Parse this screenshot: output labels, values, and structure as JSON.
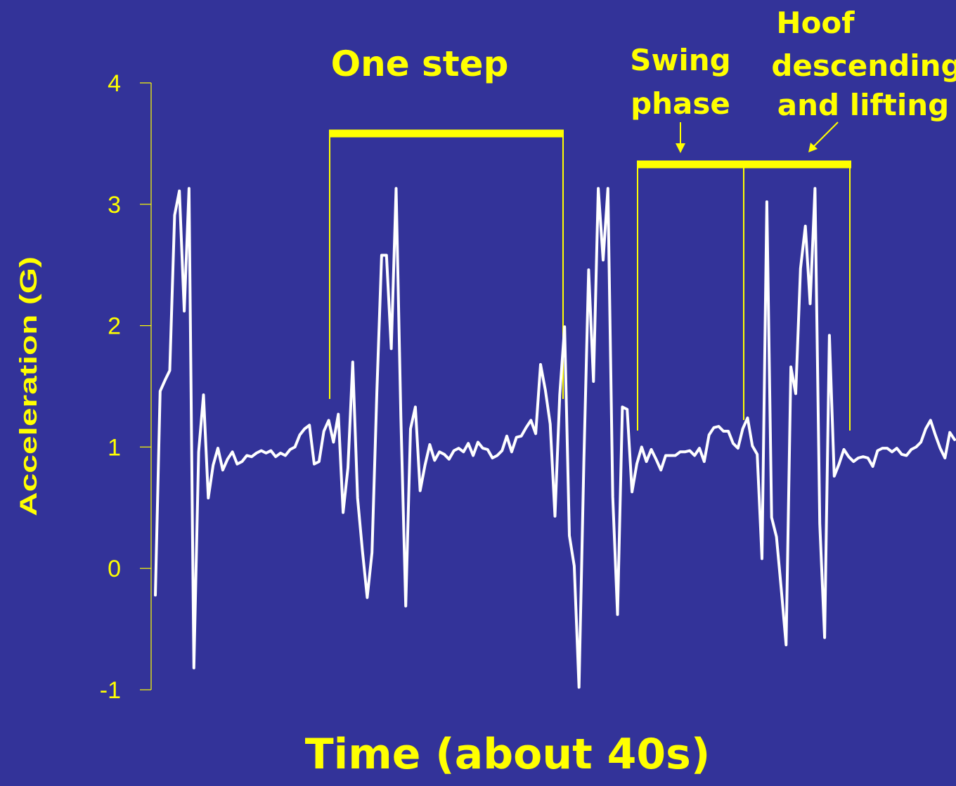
{
  "colors": {
    "background": "#333399",
    "accent": "#ffff00",
    "signal": "#ffffff"
  },
  "chart_data": {
    "type": "line",
    "title": "",
    "xlabel": "Time (about 40s)",
    "ylabel": "Acceleration (G)",
    "ylim": [
      -1,
      4
    ],
    "y_ticks": [
      "4",
      "3",
      "2",
      "1",
      "0",
      "-1"
    ],
    "grid": false,
    "legend": "none",
    "series": [
      {
        "values": [
          -0.22,
          1.46,
          1.55,
          1.63,
          2.91,
          3.11,
          2.12,
          3.13,
          -0.82,
          0.96,
          1.43,
          0.58,
          0.85,
          0.99,
          0.81,
          0.9,
          0.96,
          0.86,
          0.88,
          0.93,
          0.92,
          0.95,
          0.97,
          0.95,
          0.97,
          0.92,
          0.95,
          0.93,
          0.98,
          1.0,
          1.1,
          1.15,
          1.18,
          0.86,
          0.88,
          1.13,
          1.22,
          1.04,
          1.27,
          0.46,
          0.83,
          1.7,
          0.58,
          0.15,
          -0.24,
          0.13,
          1.45,
          2.58,
          2.58,
          1.81,
          3.13,
          1.24,
          -0.31,
          1.15,
          1.33,
          0.64,
          0.85,
          1.02,
          0.89,
          0.96,
          0.94,
          0.9,
          0.97,
          0.99,
          0.96,
          1.03,
          0.93,
          1.04,
          0.99,
          0.98,
          0.91,
          0.93,
          0.97,
          1.09,
          0.96,
          1.08,
          1.09,
          1.16,
          1.22,
          1.11,
          1.68,
          1.47,
          1.19,
          0.43,
          1.43,
          1.99,
          0.27,
          0.02,
          -0.98,
          0.88,
          2.46,
          1.54,
          3.13,
          2.54,
          3.13,
          0.59,
          -0.38,
          1.33,
          1.31,
          0.63,
          0.86,
          1.0,
          0.88,
          0.98,
          0.9,
          0.81,
          0.93,
          0.93,
          0.93,
          0.96,
          0.96,
          0.97,
          0.93,
          0.99,
          0.88,
          1.1,
          1.16,
          1.17,
          1.13,
          1.13,
          1.03,
          0.99,
          1.15,
          1.24,
          1.01,
          0.94,
          0.08,
          3.02,
          0.42,
          0.26,
          -0.17,
          -0.63,
          1.66,
          1.44,
          2.47,
          2.82,
          2.18,
          3.13,
          0.37,
          -0.57,
          1.92,
          0.76,
          0.86,
          0.98,
          0.92,
          0.88,
          0.91,
          0.92,
          0.91,
          0.84,
          0.97,
          0.99,
          0.99,
          0.96,
          0.99,
          0.94,
          0.93,
          0.98,
          1.0,
          1.04,
          1.15,
          1.22,
          1.1,
          0.99,
          0.91,
          1.12,
          1.06
        ]
      }
    ],
    "annotations": {
      "one_step": "One step",
      "swing_line1": "Swing",
      "swing_line2": "phase",
      "hoof_line1": "Hoof",
      "hoof_line2": "descending",
      "hoof_line3": "and lifting"
    }
  }
}
